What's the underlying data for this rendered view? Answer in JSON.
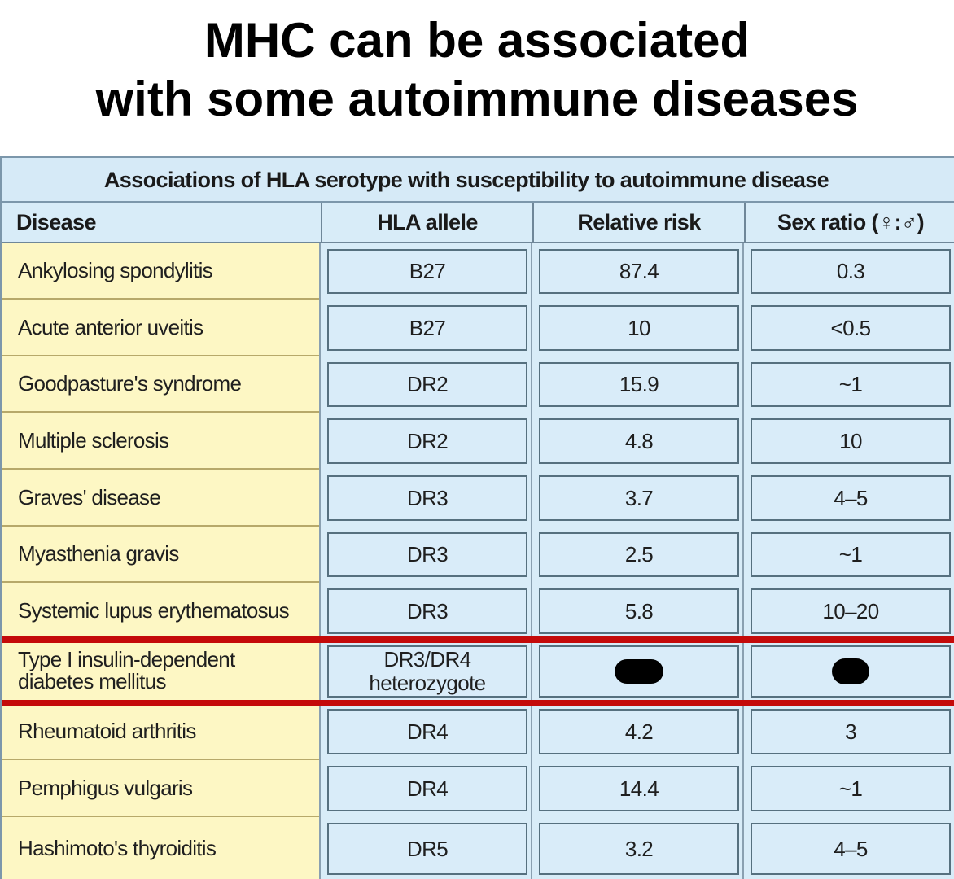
{
  "title": {
    "line1": "MHC can be associated",
    "line2": "with some autoimmune diseases"
  },
  "table": {
    "caption": "Associations of HLA serotype with susceptibility to autoimmune disease",
    "headers": [
      "Disease",
      "HLA allele",
      "Relative risk",
      "Sex ratio (♀:♂)"
    ],
    "rows": [
      {
        "disease": "Ankylosing spondylitis",
        "allele": "B27",
        "risk": "87.4",
        "sex_ratio": "0.3"
      },
      {
        "disease": "Acute anterior uveitis",
        "allele": "B27",
        "risk": "10",
        "sex_ratio": "<0.5"
      },
      {
        "disease": "Goodpasture's syndrome",
        "allele": "DR2",
        "risk": "15.9",
        "sex_ratio": "~1"
      },
      {
        "disease": "Multiple sclerosis",
        "allele": "DR2",
        "risk": "4.8",
        "sex_ratio": "10"
      },
      {
        "disease": "Graves' disease",
        "allele": "DR3",
        "risk": "3.7",
        "sex_ratio": "4–5"
      },
      {
        "disease": "Myasthenia gravis",
        "allele": "DR3",
        "risk": "2.5",
        "sex_ratio": "~1"
      },
      {
        "disease": "Systemic lupus erythematosus",
        "allele": "DR3",
        "risk": "5.8",
        "sex_ratio": "10–20"
      },
      {
        "disease_line1": "Type I insulin-dependent",
        "disease_line2": "diabetes mellitus",
        "allele_line1": "DR3/DR4",
        "allele_line2": "heterozygote",
        "risk": "",
        "sex_ratio": "",
        "highlighted": true
      },
      {
        "disease": "Rheumatoid arthritis",
        "allele": "DR4",
        "risk": "4.2",
        "sex_ratio": "3"
      },
      {
        "disease": "Pemphigus vulgaris",
        "allele": "DR4",
        "risk": "14.4",
        "sex_ratio": "~1"
      },
      {
        "disease": "Hashimoto's thyroiditis",
        "allele": "DR5",
        "risk": "3.2",
        "sex_ratio": "4–5"
      }
    ]
  },
  "colors": {
    "disease_column_bg": "#fdf7c4",
    "value_cell_bg": "#d8ecf8",
    "highlight_line": "#c40a0a",
    "redaction": "#000000"
  }
}
